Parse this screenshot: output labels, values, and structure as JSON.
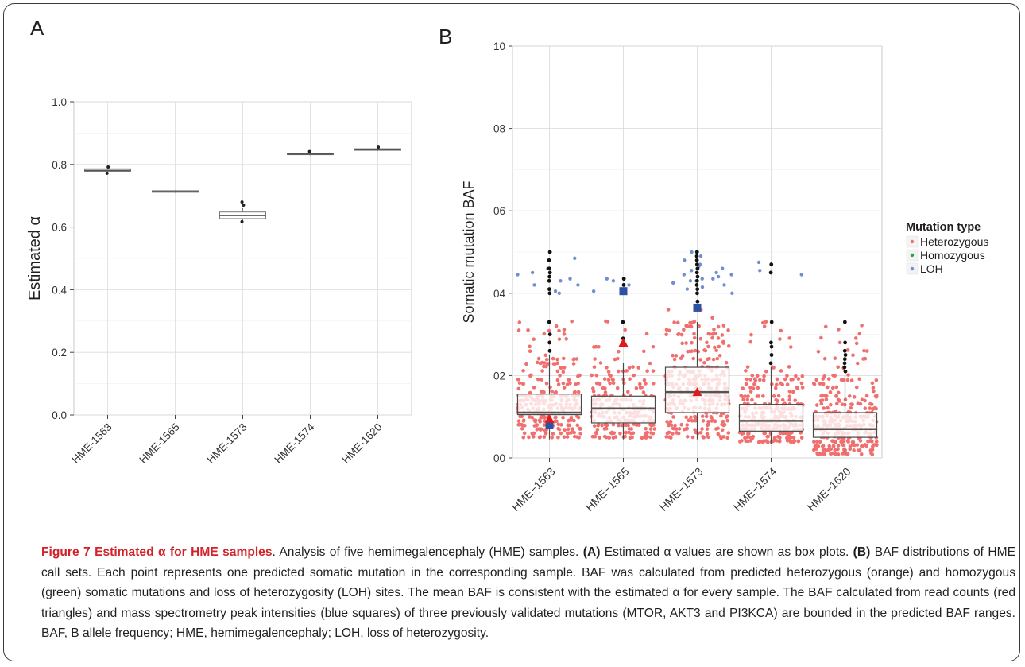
{
  "figure": {
    "panel_a_letter": "A",
    "panel_b_letter": "B",
    "caption": {
      "label": "Figure 7",
      "title": "Estimated α for HME samples",
      "intro": ". Analysis of five hemimegalencephaly (HME) samples. ",
      "a_tag": "(A)",
      "a_text": " Estimated α values are shown as box plots. ",
      "b_tag": "(B)",
      "b_text": " BAF distributions of HME call sets. Each point represents one predicted somatic mutation in the corresponding sample. BAF was calculated from predicted heterozygous (orange) and homozygous (green) somatic mutations and loss of heterozygosity (LOH) sites. The mean BAF is consistent with the estimated α for every sample. The BAF calculated from read counts (red triangles) and mass spectrometry peak intensities (blue squares) of three previously validated mutations (MTOR, AKT3 and PI3KCA) are bounded in the predicted BAF ranges. BAF, B allele frequency; HME, hemimegalencephaly; LOH, loss of heterozygosity."
    }
  },
  "chart_data": [
    {
      "type": "box",
      "panel": "A",
      "ylabel": "Estimated α",
      "ylim": [
        0.0,
        1.0
      ],
      "yticks": [
        "0.0",
        "0.2",
        "0.4",
        "0.6",
        "0.8",
        "1.0"
      ],
      "grid": true,
      "categories": [
        "HME-1563",
        "HME-1565",
        "HME-1573",
        "HME-1574",
        "HME-1620"
      ],
      "boxes": [
        {
          "q1": 0.778,
          "median": 0.781,
          "q3": 0.786,
          "whisker_low": 0.775,
          "whisker_high": 0.789,
          "outliers": [
            0.772,
            0.792
          ]
        },
        {
          "q1": 0.711,
          "median": 0.713,
          "q3": 0.716,
          "whisker_low": 0.709,
          "whisker_high": 0.718,
          "outliers": []
        },
        {
          "q1": 0.627,
          "median": 0.637,
          "q3": 0.648,
          "whisker_low": 0.62,
          "whisker_high": 0.66,
          "outliers": [
            0.67,
            0.68,
            0.617
          ]
        },
        {
          "q1": 0.831,
          "median": 0.833,
          "q3": 0.836,
          "whisker_low": 0.829,
          "whisker_high": 0.838,
          "outliers": [
            0.841
          ]
        },
        {
          "q1": 0.845,
          "median": 0.847,
          "q3": 0.85,
          "whisker_low": 0.843,
          "whisker_high": 0.852,
          "outliers": [
            0.855
          ]
        }
      ],
      "colors": {
        "box_fill": "#ffffff",
        "box_stroke": "#7a7a7a",
        "outlier": "#231f20"
      }
    },
    {
      "type": "box",
      "panel": "B",
      "ylabel": "Somatic mutation BAF",
      "ylim": [
        0,
        10
      ],
      "yticks": [
        "00",
        "02",
        "04",
        "06",
        "08",
        "10"
      ],
      "grid": true,
      "categories": [
        "HME−1563",
        "HME−1565",
        "HME−1573",
        "HME−1574",
        "HME−1620"
      ],
      "boxes": [
        {
          "q1": 1.05,
          "median": 1.1,
          "q3": 1.55,
          "whisker_low": 0.45,
          "whisker_high": 2.5,
          "mean_triangle": 0.95,
          "square": 0.8,
          "black_outliers": [
            2.6,
            2.8,
            3.0,
            3.3,
            4.0,
            4.1,
            4.3,
            4.4,
            4.5,
            4.6,
            4.8,
            5.0
          ],
          "het_max": 3.35,
          "het_count": 300,
          "loh": [
            4.5,
            4.3,
            4.2,
            4.0,
            4.45,
            4.85,
            4.35,
            4.05,
            4.6,
            4.2
          ]
        },
        {
          "q1": 0.85,
          "median": 1.2,
          "q3": 1.5,
          "whisker_low": 0.45,
          "whisker_high": 2.3,
          "mean_triangle": 2.8,
          "square": 4.05,
          "black_outliers": [
            2.9,
            3.3,
            4.2,
            4.35
          ],
          "het_max": 3.35,
          "het_count": 260,
          "loh": [
            4.2,
            4.05,
            4.3,
            4.35,
            4.1
          ]
        },
        {
          "q1": 1.1,
          "median": 1.6,
          "q3": 2.2,
          "whisker_low": 0.45,
          "whisker_high": 3.3,
          "mean_triangle": 1.6,
          "square": 3.65,
          "black_outliers": [
            3.8,
            4.0,
            4.1,
            4.2,
            4.3,
            4.4,
            4.5,
            4.6,
            4.7,
            4.8,
            4.9,
            5.0
          ],
          "het_max": 3.85,
          "het_count": 330,
          "loh": [
            5.0,
            4.9,
            4.8,
            4.6,
            4.5,
            4.4,
            4.35,
            4.3,
            4.25,
            4.2,
            4.1,
            4.45,
            4.7,
            4.55,
            4.3,
            4.15,
            4.0,
            4.35,
            4.65,
            4.45
          ]
        },
        {
          "q1": 0.65,
          "median": 0.9,
          "q3": 1.3,
          "whisker_low": 0.35,
          "whisker_high": 2.2,
          "mean_triangle": null,
          "square": null,
          "black_outliers": [
            2.3,
            2.5,
            2.7,
            2.8,
            3.3,
            4.5,
            4.7
          ],
          "het_max": 3.35,
          "het_count": 320,
          "loh": [
            4.45,
            4.55,
            4.75
          ]
        },
        {
          "q1": 0.5,
          "median": 0.7,
          "q3": 1.1,
          "whisker_low": 0.1,
          "whisker_high": 2.0,
          "mean_triangle": null,
          "square": null,
          "black_outliers": [
            2.1,
            2.2,
            2.3,
            2.4,
            2.5,
            2.6,
            2.8,
            3.3
          ],
          "het_max": 3.35,
          "het_count": 340,
          "loh": []
        }
      ],
      "legend": {
        "title": "Mutation type",
        "position": "right",
        "entries": [
          {
            "label": "Heterozygous",
            "color": "#f07070"
          },
          {
            "label": "Homozygous",
            "color": "#2e9e46"
          },
          {
            "label": "LOH",
            "color": "#6f8fd0"
          }
        ]
      },
      "colors": {
        "het": "#f07070",
        "loh": "#6f8fd0",
        "outlier": "#111111",
        "box_stroke": "#4a4a4a",
        "median": "#555555",
        "triangle": "#e3171c",
        "square": "#2e52a3",
        "panel_bg": "#ffffff",
        "grid": "#d9d9d9"
      }
    }
  ]
}
